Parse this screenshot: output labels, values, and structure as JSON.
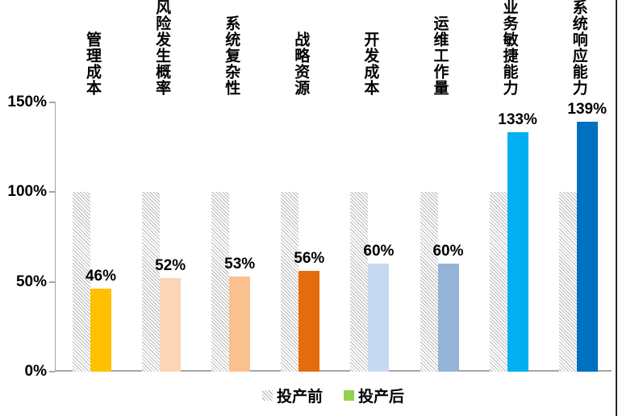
{
  "chart_data": {
    "type": "bar",
    "title": "",
    "categories": [
      "管理成本",
      "风险发生概率",
      "系统复杂性",
      "战略资源",
      "开发成本",
      "运维工作量",
      "业务敏捷能力",
      "系统响应能力"
    ],
    "series": [
      {
        "name": "投产前",
        "values": [
          100,
          100,
          100,
          100,
          100,
          100,
          100,
          100
        ],
        "style": "hatched",
        "hatch_color": "#BFBFBF"
      },
      {
        "name": "投产后",
        "values": [
          46,
          52,
          53,
          56,
          60,
          60,
          133,
          139
        ],
        "colors": [
          "#FFC000",
          "#FBD5B5",
          "#FAC090",
          "#E46C0A",
          "#C6D9F1",
          "#95B3D7",
          "#00B0F0",
          "#0070C0"
        ]
      }
    ],
    "value_labels": [
      "46%",
      "52%",
      "53%",
      "56%",
      "60%",
      "60%",
      "133%",
      "139%"
    ],
    "y_axis": {
      "ticks": [
        {
          "label": "0%",
          "value": 0
        },
        {
          "label": "50%",
          "value": 50
        },
        {
          "label": "100%",
          "value": 100
        },
        {
          "label": "150%",
          "value": 150
        }
      ],
      "min": 0,
      "max": 150,
      "unit": "%"
    },
    "grid": false,
    "legend": {
      "position": "bottom",
      "items": [
        {
          "label": "投产前",
          "swatch": "hatched"
        },
        {
          "label": "投产后",
          "swatch": "#92D050"
        }
      ]
    }
  },
  "colors": {
    "axis": "#A6A6A6",
    "text": "#000000",
    "background": "#FFFFFF",
    "right_border": "#262626"
  }
}
